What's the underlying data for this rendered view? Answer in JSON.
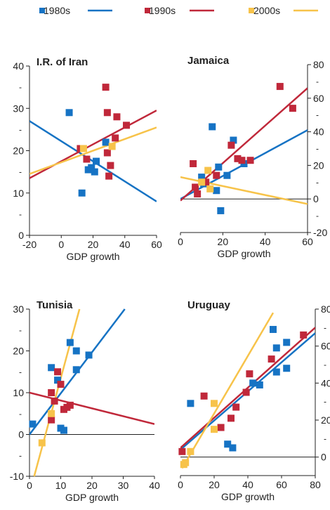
{
  "legend": [
    {
      "label": "1980s",
      "color": "#1673c4"
    },
    {
      "label": "1990s",
      "color": "#c0283a"
    },
    {
      "label": "2000s",
      "color": "#f7c34a"
    }
  ],
  "colors": {
    "series_1980s": "#1673c4",
    "series_1990s": "#c0283a",
    "series_2000s": "#f7c34a",
    "axis": "#222222"
  },
  "chart_data": [
    {
      "type": "scatter",
      "title": "I.R. of Iran",
      "xlabel": "GDP growth",
      "ylabel": "",
      "xlim": [
        -20,
        60
      ],
      "ylim": [
        0,
        40
      ],
      "xticks": [
        -20,
        0,
        20,
        40,
        60
      ],
      "yticks": [
        0,
        10,
        20,
        30,
        40
      ],
      "ytick_side": "left",
      "zero_line": false,
      "series": [
        {
          "name": "1980s",
          "points": [
            [
              5,
              29
            ],
            [
              13,
              10
            ],
            [
              17,
              15.5
            ],
            [
              19,
              16
            ],
            [
              21,
              15
            ],
            [
              22,
              17.5
            ],
            [
              28,
              22
            ]
          ],
          "fit": [
            [
              -20,
              27
            ],
            [
              60,
              8
            ]
          ]
        },
        {
          "name": "1990s",
          "points": [
            [
              12,
              20.5
            ],
            [
              16,
              18
            ],
            [
              28,
              35
            ],
            [
              29,
              19.5
            ],
            [
              29,
              29
            ],
            [
              30,
              14
            ],
            [
              31,
              16.5
            ],
            [
              34,
              23
            ],
            [
              35,
              28
            ],
            [
              41,
              26
            ]
          ],
          "fit": [
            [
              -20,
              13.5
            ],
            [
              60,
              29.5
            ]
          ]
        },
        {
          "name": "2000s",
          "points": [
            [
              14,
              20.5
            ],
            [
              32,
              21
            ]
          ],
          "fit": [
            [
              -20,
              14.5
            ],
            [
              60,
              25.5
            ]
          ]
        }
      ]
    },
    {
      "type": "scatter",
      "title": "Jamaica",
      "xlabel": "GDP growth",
      "ylabel": "",
      "xlim": [
        0,
        60
      ],
      "ylim": [
        -20,
        80
      ],
      "xticks": [
        0,
        20,
        40,
        60
      ],
      "yticks": [
        -20,
        0,
        20,
        40,
        60,
        80
      ],
      "ytick_side": "right",
      "zero_line": true,
      "series": [
        {
          "name": "1980s",
          "points": [
            [
              10,
              13
            ],
            [
              11,
              9
            ],
            [
              15,
              43
            ],
            [
              17,
              5
            ],
            [
              18,
              19
            ],
            [
              19,
              -7
            ],
            [
              22,
              14
            ],
            [
              25,
              35
            ],
            [
              30,
              21
            ]
          ],
          "fit": [
            [
              0,
              0
            ],
            [
              60,
              41
            ]
          ]
        },
        {
          "name": "1990s",
          "points": [
            [
              6,
              21
            ],
            [
              7,
              7
            ],
            [
              8,
              3
            ],
            [
              12,
              10
            ],
            [
              17,
              14
            ],
            [
              24,
              32
            ],
            [
              27,
              24
            ],
            [
              29,
              23
            ],
            [
              33,
              23
            ],
            [
              47,
              67
            ],
            [
              53,
              54
            ]
          ],
          "fit": [
            [
              0,
              -1
            ],
            [
              60,
              66
            ]
          ]
        },
        {
          "name": "2000s",
          "points": [
            [
              10,
              10
            ],
            [
              13,
              17
            ],
            [
              14,
              6
            ]
          ],
          "fit": [
            [
              0,
              13
            ],
            [
              60,
              -3
            ]
          ]
        }
      ]
    },
    {
      "type": "scatter",
      "title": "Tunisia",
      "xlabel": "GDP growth",
      "ylabel": "",
      "xlim": [
        0,
        40
      ],
      "ylim": [
        -10,
        30
      ],
      "xticks": [
        0,
        10,
        20,
        30,
        40
      ],
      "yticks": [
        -10,
        0,
        10,
        20,
        30
      ],
      "ytick_side": "left",
      "zero_line": true,
      "series": [
        {
          "name": "1980s",
          "points": [
            [
              1,
              2.5
            ],
            [
              7,
              16
            ],
            [
              9,
              13
            ],
            [
              10,
              1.5
            ],
            [
              11,
              1
            ],
            [
              13,
              22
            ],
            [
              15,
              20
            ],
            [
              15,
              15.5
            ],
            [
              19,
              19
            ]
          ],
          "fit": [
            [
              0,
              0
            ],
            [
              30.5,
              30
            ]
          ]
        },
        {
          "name": "1990s",
          "points": [
            [
              7,
              3.5
            ],
            [
              7,
              10
            ],
            [
              8,
              8
            ],
            [
              9,
              15
            ],
            [
              10,
              12
            ],
            [
              11,
              6
            ],
            [
              12,
              6.5
            ],
            [
              13,
              7
            ]
          ],
          "fit": [
            [
              0,
              10
            ],
            [
              40,
              2.5
            ]
          ]
        },
        {
          "name": "2000s",
          "points": [
            [
              4,
              -2
            ],
            [
              7,
              5
            ]
          ],
          "fit": [
            [
              1.5,
              -10
            ],
            [
              16,
              30
            ]
          ]
        }
      ]
    },
    {
      "type": "scatter",
      "title": "Uruguay",
      "xlabel": "GDP growth",
      "ylabel": "",
      "xlim": [
        0,
        80
      ],
      "ylim": [
        -10,
        80
      ],
      "xticks": [
        0,
        20,
        40,
        60,
        80
      ],
      "yticks": [
        0,
        20,
        40,
        60,
        80
      ],
      "ytick_side": "right",
      "zero_line": true,
      "series": [
        {
          "name": "1980s",
          "points": [
            [
              6,
              29
            ],
            [
              28,
              7
            ],
            [
              31,
              5
            ],
            [
              43,
              40
            ],
            [
              47,
              39
            ],
            [
              55,
              69
            ],
            [
              57,
              59
            ],
            [
              57,
              46
            ],
            [
              63,
              62
            ],
            [
              63,
              48
            ]
          ],
          "fit": [
            [
              0,
              4
            ],
            [
              80,
              67
            ]
          ]
        },
        {
          "name": "1990s",
          "points": [
            [
              1,
              3
            ],
            [
              14,
              33
            ],
            [
              24,
              16
            ],
            [
              30,
              21
            ],
            [
              33,
              27
            ],
            [
              39,
              35
            ],
            [
              41,
              45
            ],
            [
              54,
              53
            ],
            [
              73,
              66
            ]
          ],
          "fit": [
            [
              0,
              5
            ],
            [
              80,
              70
            ]
          ]
        },
        {
          "name": "2000s",
          "points": [
            [
              2,
              -4
            ],
            [
              3,
              -3
            ],
            [
              6,
              3
            ],
            [
              20,
              29
            ],
            [
              20,
              15
            ]
          ],
          "fit": [
            [
              1,
              -6
            ],
            [
              55,
              78
            ]
          ]
        }
      ]
    }
  ]
}
